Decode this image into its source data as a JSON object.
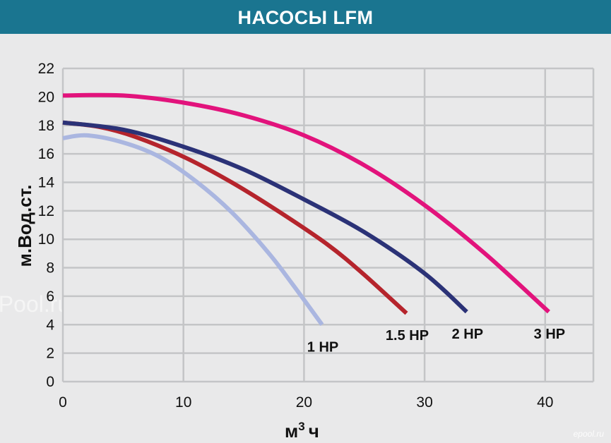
{
  "title": "НАСОСЫ LFM",
  "watermark": "ePool.ru",
  "corner_mark": "epool.ru",
  "chart_data": {
    "type": "line",
    "title": "НАСОСЫ LFM",
    "xlabel_main": "м",
    "xlabel_sup": "3",
    "xlabel_end": "ч",
    "ylabel": "м.Вод.ст.",
    "xlim": [
      0,
      44
    ],
    "ylim": [
      0,
      22
    ],
    "xticks": [
      0,
      10,
      20,
      30,
      40
    ],
    "yticks": [
      0,
      2,
      4,
      6,
      8,
      10,
      12,
      14,
      16,
      18,
      20,
      22
    ],
    "grid": true,
    "series": [
      {
        "name": "1 HP",
        "color": "#aab6e0",
        "x": [
          0,
          2,
          5,
          8,
          11,
          14,
          17,
          19,
          21.5
        ],
        "y": [
          17.1,
          17.3,
          16.8,
          15.8,
          14.1,
          11.9,
          9.1,
          6.9,
          4.0
        ]
      },
      {
        "name": "1.5 HP",
        "color": "#b5242c",
        "x": [
          0,
          3,
          6,
          10,
          14,
          18,
          22,
          25,
          28.5
        ],
        "y": [
          18.2,
          17.9,
          17.2,
          15.8,
          14.0,
          11.9,
          9.6,
          7.5,
          4.8
        ]
      },
      {
        "name": "2 HP",
        "color": "#2b3277",
        "x": [
          0,
          5,
          10,
          15,
          20,
          25,
          30,
          33.5
        ],
        "y": [
          18.2,
          17.7,
          16.5,
          14.9,
          12.8,
          10.5,
          7.6,
          4.9
        ]
      },
      {
        "name": "3 HP",
        "color": "#e2137c",
        "x": [
          0,
          5,
          10,
          15,
          20,
          25,
          30,
          35,
          40.3
        ],
        "y": [
          20.1,
          20.1,
          19.6,
          18.7,
          17.3,
          15.2,
          12.4,
          9.0,
          4.9
        ]
      }
    ]
  }
}
